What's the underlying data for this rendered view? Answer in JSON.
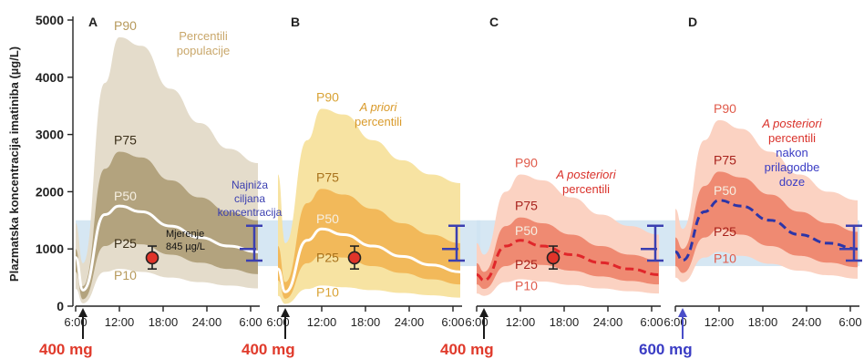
{
  "chart_data": {
    "type": "area",
    "ylabel": "Plazmatska koncentracija imatiniba (µg/L)",
    "ylim": [
      0,
      5000
    ],
    "yticks": [
      0,
      1000,
      2000,
      3000,
      4000,
      5000
    ],
    "target_band": [
      700,
      1500
    ],
    "target_level": 1000,
    "target_label": [
      "Najniža",
      "ciljana",
      "koncentracija"
    ],
    "measurement": {
      "label": [
        "Mjerenje",
        "845 µg/L"
      ],
      "time": "16:30",
      "value": 845,
      "error": [
        650,
        1050
      ]
    },
    "panels": [
      {
        "letter": "A",
        "dose": "400 mg",
        "dose_color": "#e03a2b",
        "arrow_color": "#1a1a1a",
        "x_ticks": [
          "6:00",
          "12:00",
          "18:00",
          "24:00",
          "6:00"
        ],
        "annotation": [
          "Percentili",
          "populacije"
        ],
        "annotation_colors": [
          "#c9a76a",
          "#c9a76a"
        ],
        "colors": {
          "outer": "#e4dccb",
          "inner": "#b3a37e",
          "median": "#ffffff",
          "label": "#b79a5c",
          "label_inner": "#3a2e18"
        },
        "percentile_labels": [
          "P90",
          "P75",
          "P50",
          "P25",
          "P10"
        ],
        "series": [
          {
            "name": "P90",
            "values": [
              1450,
              750,
              3900,
              4700,
              4550,
              3800,
              3200,
              2750,
              2500
            ]
          },
          {
            "name": "P75",
            "values": [
              1000,
              350,
              2400,
              2700,
              2600,
              2200,
              1900,
              1650,
              1500
            ]
          },
          {
            "name": "P50",
            "values": [
              850,
              280,
              1600,
              1750,
              1650,
              1400,
              1200,
              1050,
              950
            ]
          },
          {
            "name": "P25",
            "values": [
              600,
              120,
              1050,
              1150,
              1080,
              900,
              760,
              650,
              560
            ]
          },
          {
            "name": "P10",
            "values": [
              300,
              50,
              600,
              650,
              600,
              500,
              420,
              360,
              310
            ]
          }
        ],
        "show_measurement": true,
        "median_dashed": false
      },
      {
        "letter": "B",
        "dose": "400 mg",
        "dose_color": "#e03a2b",
        "arrow_color": "#1a1a1a",
        "x_ticks": [
          "6:00",
          "12:00",
          "18:00",
          "24:00",
          "6:00"
        ],
        "annotation": [
          "A priori",
          "percentili"
        ],
        "annotation_colors": [
          "#d99a2a",
          "#d99a2a"
        ],
        "colors": {
          "outer": "#f7e3a2",
          "inner": "#f2b95a",
          "median": "#ffffff",
          "label": "#d9a336",
          "label_inner": "#a8721c"
        },
        "percentile_labels": [
          "P90",
          "P75",
          "P50",
          "P25",
          "P10"
        ],
        "series": [
          {
            "name": "P90",
            "values": [
              2300,
              1100,
              2900,
              3450,
              3350,
              2900,
              2550,
              2300,
              2150
            ]
          },
          {
            "name": "P75",
            "values": [
              1050,
              420,
              1800,
              2050,
              1950,
              1700,
              1450,
              1250,
              1100
            ]
          },
          {
            "name": "P50",
            "values": [
              650,
              250,
              1150,
              1350,
              1250,
              1050,
              870,
              720,
              600
            ]
          },
          {
            "name": "P25",
            "values": [
              450,
              130,
              750,
              900,
              850,
              700,
              580,
              470,
              380
            ]
          },
          {
            "name": "P10",
            "values": [
              180,
              40,
              300,
              360,
              330,
              280,
              230,
              190,
              150
            ]
          }
        ],
        "show_measurement": true,
        "median_dashed": false
      },
      {
        "letter": "C",
        "dose": "400 mg",
        "dose_color": "#e03a2b",
        "arrow_color": "#1a1a1a",
        "x_ticks": [
          "6:00",
          "12:00",
          "18:00",
          "24:00",
          "6:00"
        ],
        "annotation": [
          "A posteriori",
          "percentili"
        ],
        "annotation_colors": [
          "#d9312a",
          "#d9312a"
        ],
        "colors": {
          "outer": "#fbd2c2",
          "inner": "#ef8a72",
          "median": "#e0262a",
          "label": "#e05a4a",
          "label_inner": "#a8221c"
        },
        "percentile_labels": [
          "P90",
          "P75",
          "P50",
          "P25",
          "P10"
        ],
        "series": [
          {
            "name": "P90",
            "values": [
              1100,
              900,
              2000,
              2300,
              2200,
              1900,
              1600,
              1400,
              1250
            ]
          },
          {
            "name": "P75",
            "values": [
              750,
              600,
              1400,
              1550,
              1450,
              1250,
              1050,
              900,
              800
            ]
          },
          {
            "name": "P50",
            "values": [
              550,
              450,
              1050,
              1150,
              1050,
              900,
              760,
              650,
              550
            ]
          },
          {
            "name": "P25",
            "values": [
              380,
              300,
              700,
              780,
              720,
              620,
              520,
              440,
              380
            ]
          },
          {
            "name": "P10",
            "values": [
              220,
              180,
              420,
              470,
              430,
              370,
              310,
              260,
              220
            ]
          }
        ],
        "show_measurement": true,
        "median_dashed": true
      },
      {
        "letter": "D",
        "dose": "600 mg",
        "dose_color": "#3a3cc4",
        "arrow_color": "#4a4dc8",
        "x_ticks": [
          "6:00",
          "12:00",
          "18:00",
          "24:00",
          "6:00"
        ],
        "annotation": [
          "A posteriori",
          "percentili",
          "nakon",
          "prilagodbe",
          "doze"
        ],
        "annotation_colors": [
          "#d9312a",
          "#d9312a",
          "#3a3cc4",
          "#3a3cc4",
          "#3a3cc4"
        ],
        "colors": {
          "outer": "#fbd2c2",
          "inner": "#ef8a72",
          "median": "#2c35a8",
          "label": "#e05a4a",
          "label_inner": "#a8221c"
        },
        "percentile_labels": [
          "P90",
          "P75",
          "P50",
          "P25",
          "P10"
        ],
        "series": [
          {
            "name": "P90",
            "values": [
              1700,
              1350,
              2900,
              3250,
              3100,
              2700,
              2300,
              2000,
              1850
            ]
          },
          {
            "name": "P75",
            "values": [
              1200,
              1000,
              2100,
              2350,
              2250,
              1950,
              1650,
              1450,
              1300
            ]
          },
          {
            "name": "P50",
            "values": [
              950,
              800,
              1650,
              1850,
              1750,
              1500,
              1250,
              1100,
              1000
            ]
          },
          {
            "name": "P25",
            "values": [
              700,
              580,
              1200,
              1350,
              1250,
              1050,
              880,
              760,
              680
            ]
          },
          {
            "name": "P10",
            "values": [
              500,
              420,
              850,
              950,
              880,
              740,
              620,
              540,
              480
            ]
          }
        ],
        "show_measurement": false,
        "median_dashed": true
      }
    ],
    "x_hours": [
      0,
      1,
      4,
      6,
      9,
      13,
      17,
      21,
      25
    ]
  }
}
